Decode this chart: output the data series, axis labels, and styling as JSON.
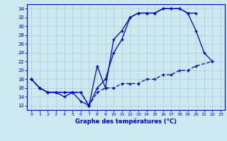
{
  "title": "Graphe des températures (°C)",
  "bg_color": "#cce8f0",
  "grid_color": "#aaccdd",
  "line_color": "#0000bb",
  "xlim": [
    -0.5,
    23.5
  ],
  "ylim": [
    11,
    35
  ],
  "yticks": [
    12,
    14,
    16,
    18,
    20,
    22,
    24,
    26,
    28,
    30,
    32,
    34
  ],
  "xticks": [
    0,
    1,
    2,
    3,
    4,
    5,
    6,
    7,
    8,
    9,
    10,
    11,
    12,
    13,
    14,
    15,
    16,
    17,
    18,
    19,
    20,
    21,
    22,
    23
  ],
  "line1_x": [
    0,
    1,
    2,
    3,
    4,
    5,
    6,
    7,
    8,
    9,
    10,
    11,
    12,
    13,
    14,
    15,
    16,
    17,
    18,
    19,
    20,
    21,
    22
  ],
  "line1_y": [
    18,
    16,
    15,
    15,
    14,
    15,
    13,
    12,
    21,
    16,
    27,
    29,
    32,
    33,
    33,
    33,
    34,
    34,
    34,
    33,
    29,
    24,
    22
  ],
  "line2_x": [
    0,
    1,
    2,
    3,
    4,
    5,
    6,
    7,
    8,
    9,
    10,
    11,
    12,
    13,
    14,
    15,
    16,
    17,
    18,
    19,
    20
  ],
  "line2_y": [
    18,
    16,
    15,
    15,
    15,
    15,
    15,
    12,
    16,
    18,
    24,
    27,
    32,
    33,
    33,
    33,
    34,
    34,
    34,
    33,
    33
  ],
  "line3_x": [
    0,
    1,
    2,
    3,
    4,
    5,
    6,
    7,
    8,
    9,
    10,
    11,
    12,
    13,
    14,
    15,
    16,
    17,
    18,
    19,
    20,
    22
  ],
  "line3_y": [
    18,
    16,
    15,
    15,
    15,
    15,
    15,
    12,
    15,
    16,
    16,
    17,
    17,
    17,
    18,
    18,
    19,
    19,
    20,
    20,
    21,
    22
  ]
}
